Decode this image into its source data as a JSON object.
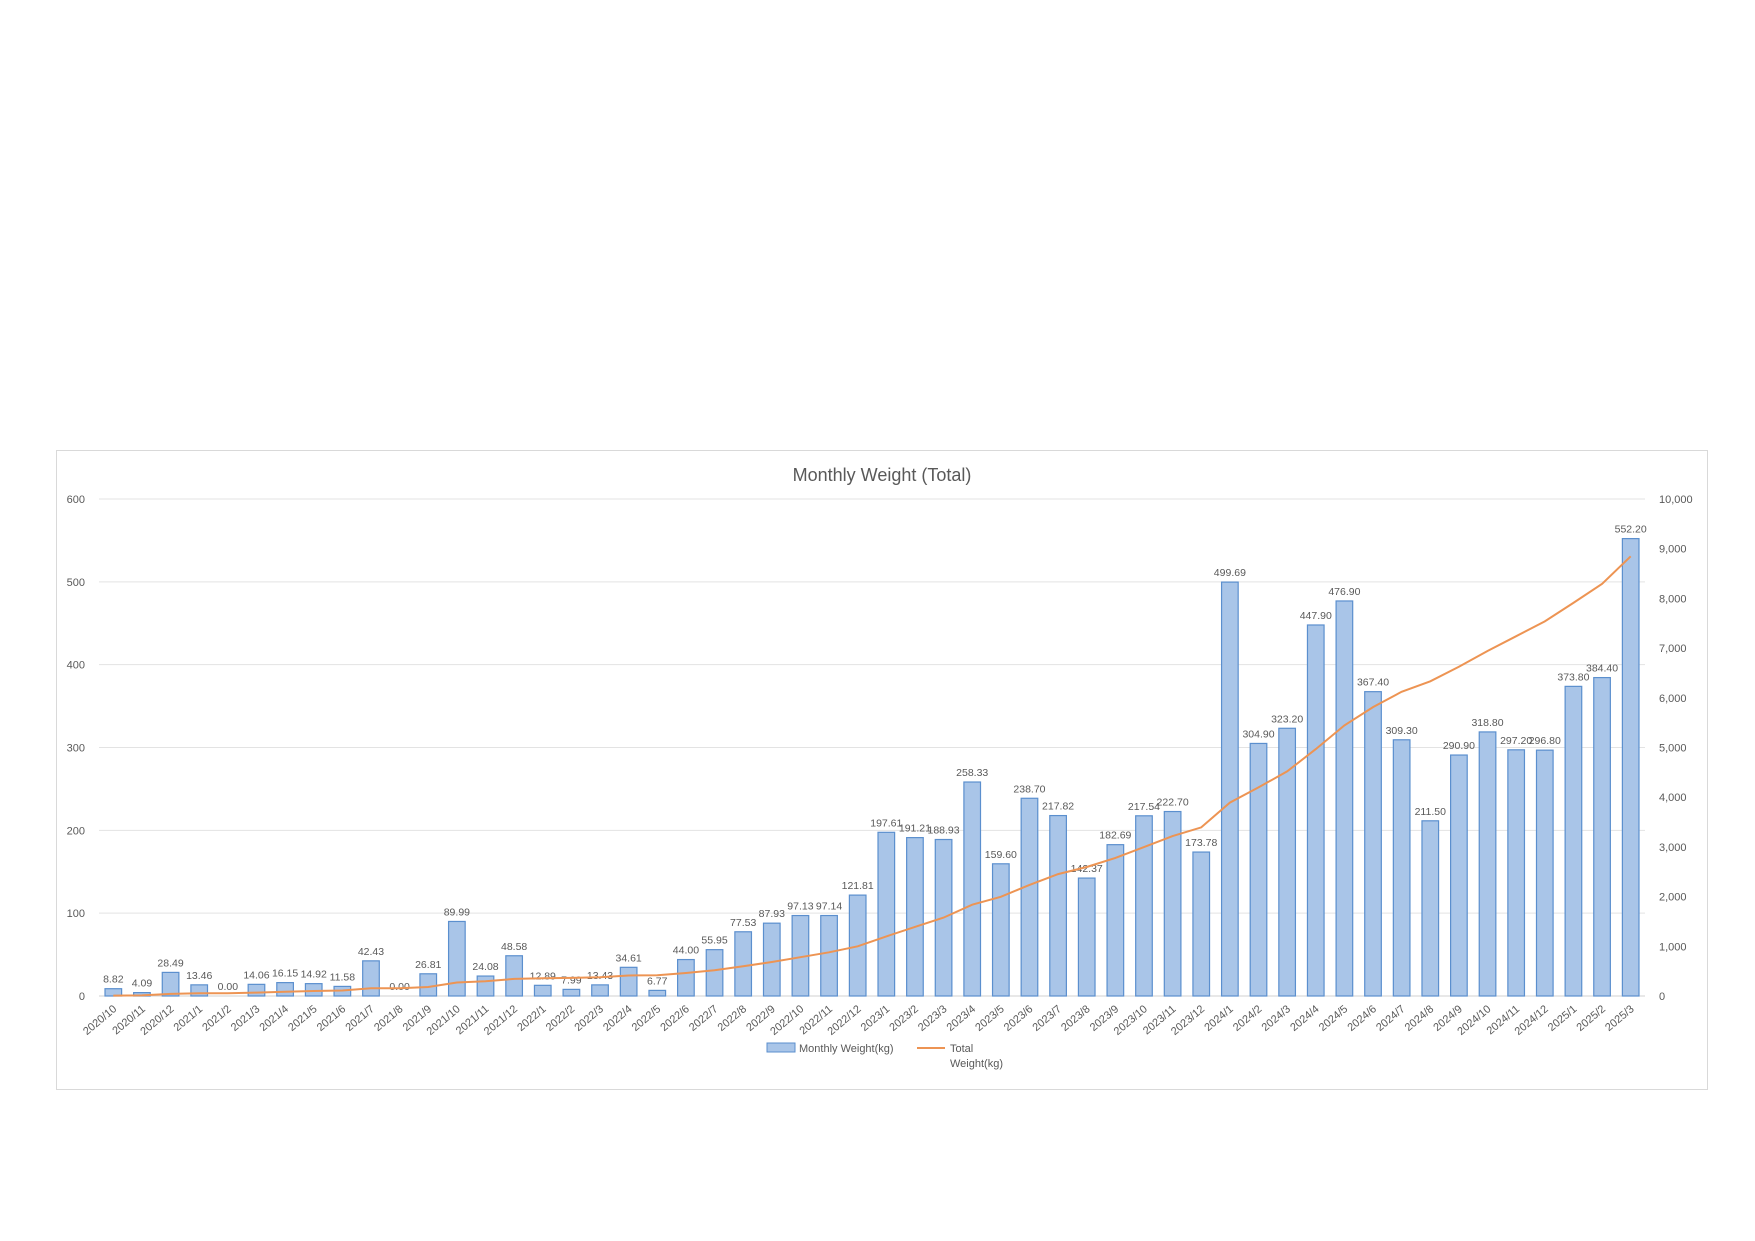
{
  "chart_data": {
    "type": "bar",
    "title": "Monthly Weight (Total)",
    "categories": [
      "2020/10",
      "2020/11",
      "2020/12",
      "2021/1",
      "2021/2",
      "2021/3",
      "2021/4",
      "2021/5",
      "2021/6",
      "2021/7",
      "2021/8",
      "2021/9",
      "2021/10",
      "2021/11",
      "2021/12",
      "2022/1",
      "2022/2",
      "2022/3",
      "2022/4",
      "2022/5",
      "2022/6",
      "2022/7",
      "2022/8",
      "2022/9",
      "2022/10",
      "2022/11",
      "2022/12",
      "2023/1",
      "2023/2",
      "2023/3",
      "2023/4",
      "2023/5",
      "2023/6",
      "2023/7",
      "2023/8",
      "2023/9",
      "2023/10",
      "2023/11",
      "2023/12",
      "2024/1",
      "2024/2",
      "2024/3",
      "2024/4",
      "2024/5",
      "2024/6",
      "2024/7",
      "2024/8",
      "2024/9",
      "2024/10",
      "2024/11",
      "2024/12",
      "2025/1",
      "2025/2",
      "2025/3"
    ],
    "series": [
      {
        "name": "Monthly Weight(kg)",
        "kind": "bar",
        "axis": "left",
        "color": "#a9c5e8",
        "border": "#5b8fce",
        "values": [
          8.82,
          4.09,
          28.49,
          13.46,
          0.0,
          14.06,
          16.15,
          14.92,
          11.58,
          42.43,
          0.0,
          26.81,
          89.99,
          24.08,
          48.58,
          12.89,
          7.99,
          13.43,
          34.61,
          6.77,
          44.0,
          55.95,
          77.53,
          87.93,
          97.13,
          97.14,
          121.81,
          197.61,
          191.21,
          188.93,
          258.33,
          159.6,
          238.7,
          217.82,
          142.37,
          182.69,
          217.54,
          222.7,
          173.78,
          499.69,
          304.9,
          323.2,
          447.9,
          476.9,
          367.4,
          309.3,
          211.5,
          290.9,
          318.8,
          297.2,
          296.8,
          373.8,
          384.4,
          552.2
        ],
        "labels": [
          "8.82",
          "4.09",
          "28.49",
          "13.46",
          "0.00",
          "14.06",
          "16.15",
          "14.92",
          "11.58",
          "42.43",
          "0.00",
          "26.81",
          "89.99",
          "24.08",
          "48.58",
          "12.89",
          "7.99",
          "13.43",
          "34.61",
          "6.77",
          "44.00",
          "55.95",
          "77.53",
          "87.93",
          "97.13",
          "97.14",
          "121.81",
          "197.61",
          "191.21",
          "188.93",
          "258.33",
          "159.60",
          "238.70",
          "217.82",
          "142.37",
          "182.69",
          "217.54",
          "222.70",
          "173.78",
          "499.69",
          "304.90",
          "323.20",
          "447.90",
          "476.90",
          "367.40",
          "309.30",
          "211.50",
          "290.90",
          "318.80",
          "297.20",
          "296.80",
          "373.80",
          "384.40",
          "552.20"
        ]
      },
      {
        "name": "Total Weight(kg)",
        "legend_lines": [
          "Total",
          "Weight(kg)"
        ],
        "kind": "line",
        "axis": "right",
        "color": "#ed9453",
        "values": [
          8.82,
          12.91,
          41.4,
          54.86,
          54.86,
          68.92,
          85.07,
          99.99,
          111.57,
          154.0,
          154.0,
          180.81,
          270.8,
          294.88,
          343.46,
          356.35,
          364.34,
          377.77,
          412.38,
          419.15,
          463.15,
          519.1,
          596.63,
          684.56,
          781.69,
          878.83,
          1000.64,
          1198.25,
          1389.46,
          1578.39,
          1836.72,
          1996.32,
          2235.02,
          2452.84,
          2595.21,
          2777.9,
          2995.44,
          3218.14,
          3391.92,
          3891.61,
          4196.51,
          4519.71,
          4967.61,
          5444.51,
          5811.91,
          6121.21,
          6332.71,
          6623.61,
          6942.41,
          7239.61,
          7536.41,
          7910.21,
          8294.61,
          8846.81
        ]
      }
    ],
    "y_left": {
      "ylim": [
        0,
        600
      ],
      "ticks": [
        "0",
        "100",
        "200",
        "300",
        "400",
        "500",
        "600"
      ]
    },
    "y_right": {
      "ylim": [
        0,
        10000
      ],
      "ticks": [
        "0",
        "1,000",
        "2,000",
        "3,000",
        "4,000",
        "5,000",
        "6,000",
        "7,000",
        "8,000",
        "9,000",
        "10,000"
      ]
    },
    "grid": true,
    "legend_position": "bottom"
  }
}
